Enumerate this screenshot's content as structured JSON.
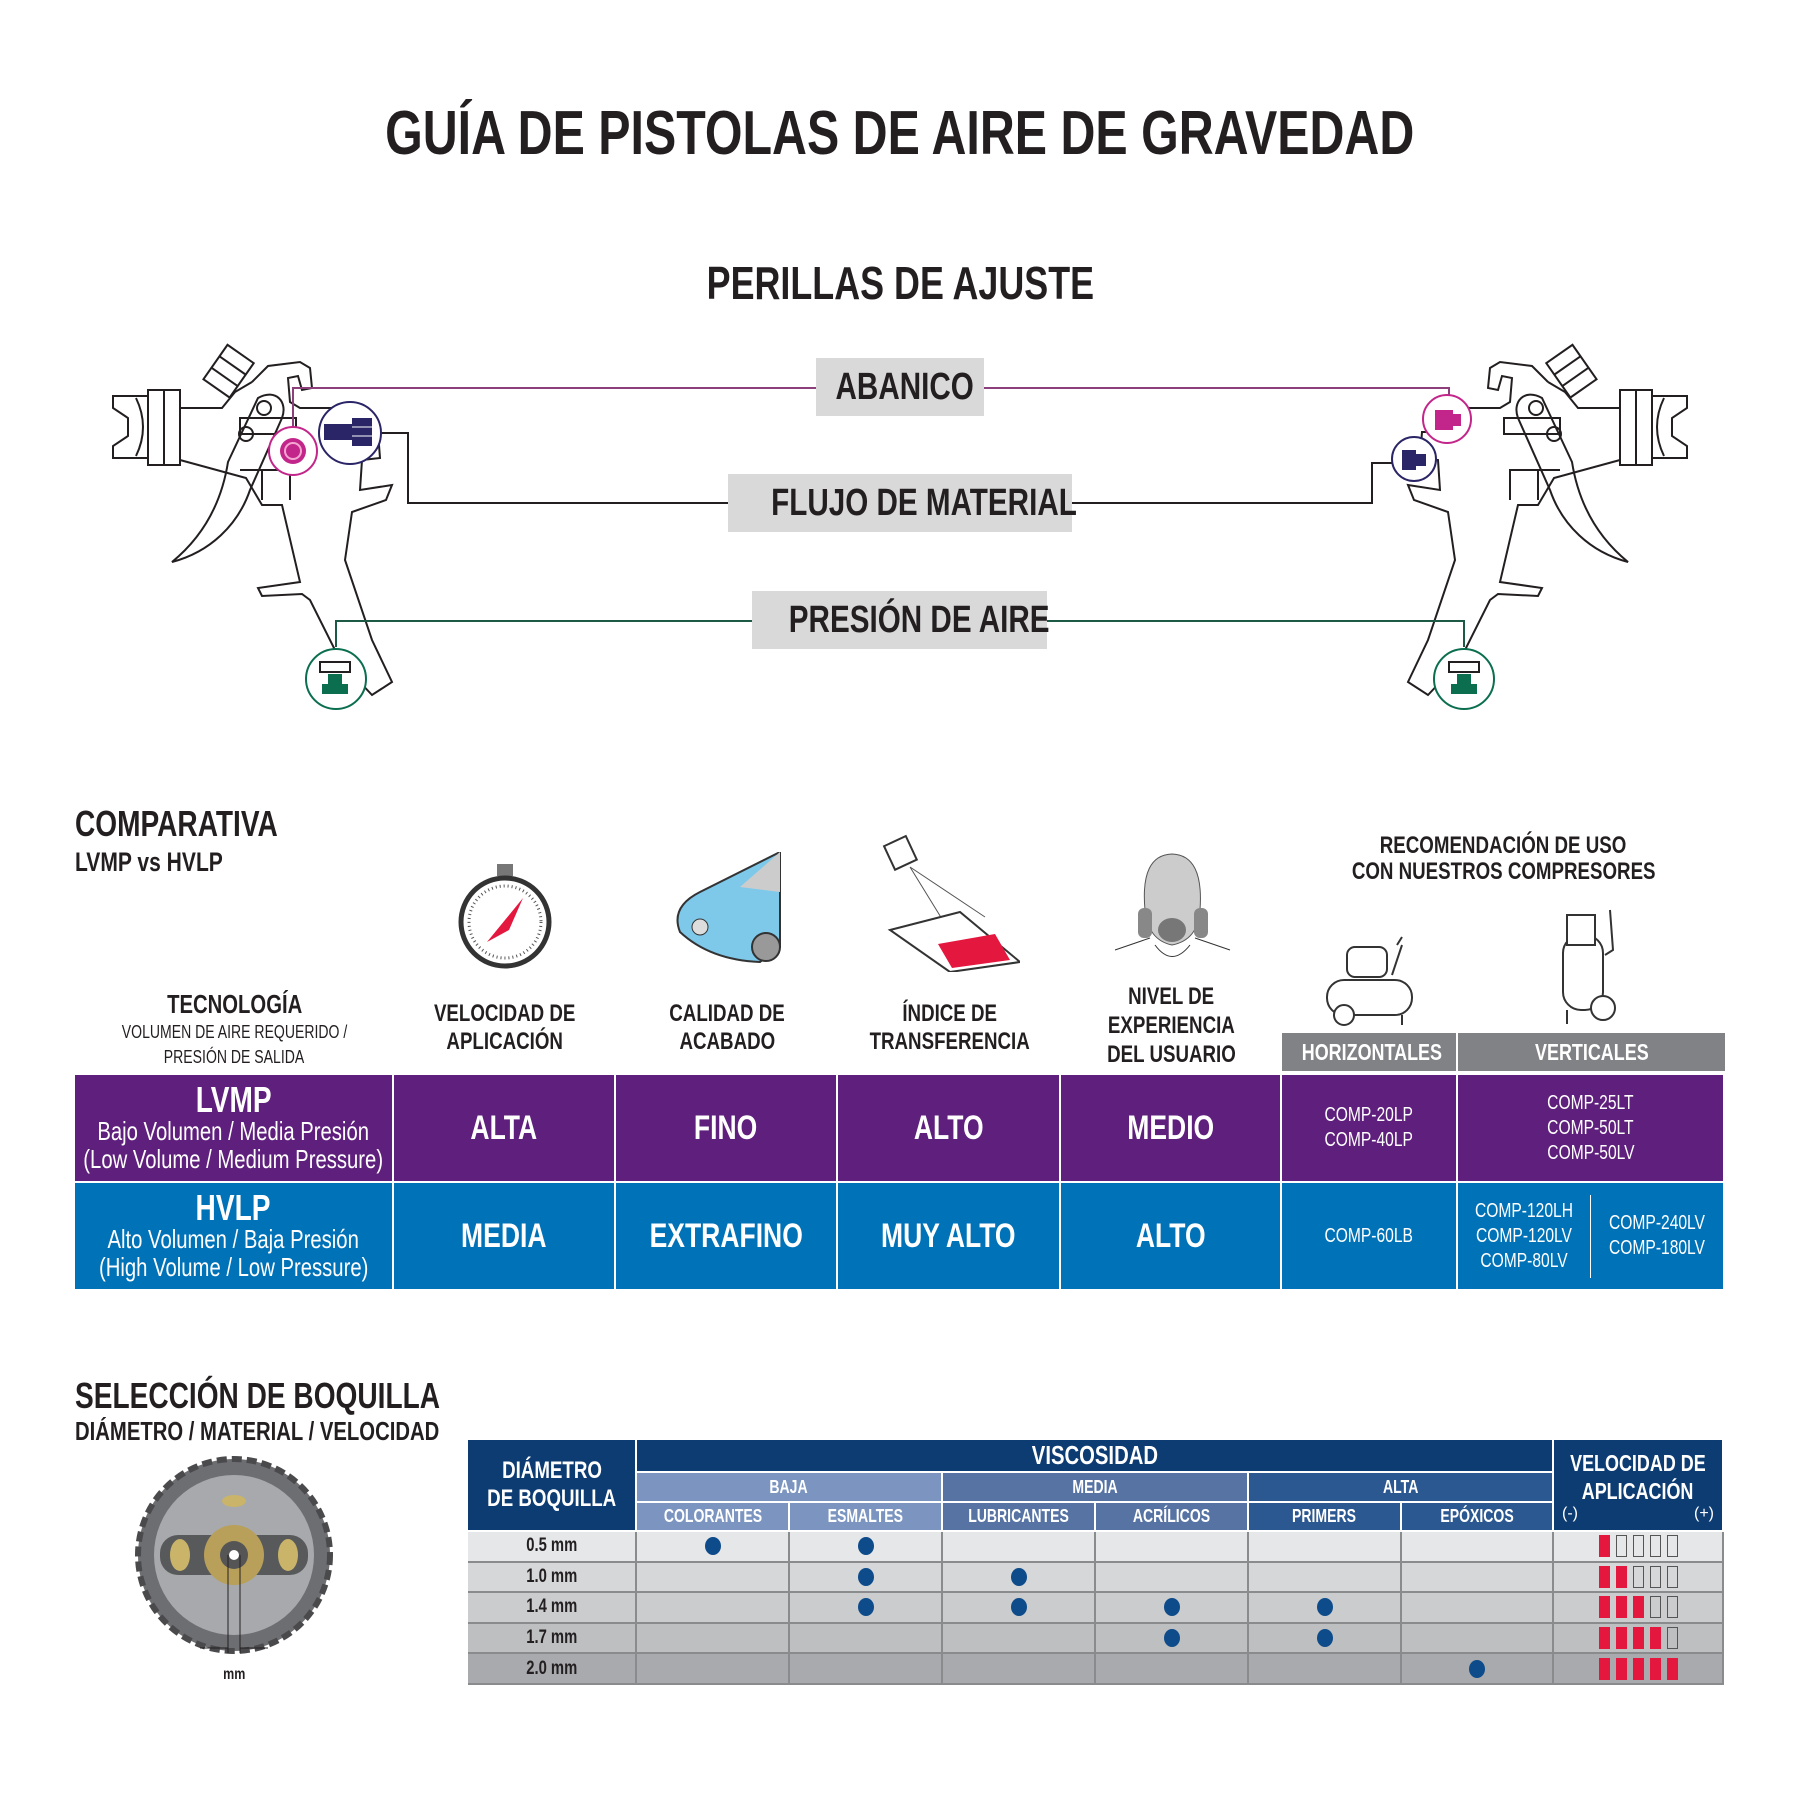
{
  "title": "GUÍA DE PISTOLAS DE AIRE DE GRAVEDAD",
  "adjust": {
    "title": "PERILLAS DE AJUSTE",
    "knobs": [
      {
        "label": "ABANICO",
        "color": "#c2268a"
      },
      {
        "label": "FLUJO DE MATERIAL",
        "color": "#2a2566"
      },
      {
        "label": "PRESIÓN DE AIRE",
        "color": "#0a6e4f"
      }
    ]
  },
  "comparison": {
    "title": "COMPARATIVA",
    "subtitle": "LVMP vs HVLP",
    "headers": {
      "technology": "TECNOLOGÍA",
      "technology_sub1": "VOLUMEN DE AIRE REQUERIDO /",
      "technology_sub2": "PRESIÓN DE SALIDA",
      "speed": [
        "VELOCIDAD DE",
        "APLICACIÓN"
      ],
      "finish": [
        "CALIDAD DE",
        "ACABADO"
      ],
      "transfer": [
        "ÍNDICE DE",
        "TRANSFERENCIA"
      ],
      "experience": [
        "NIVEL DE",
        "EXPERIENCIA",
        "DEL USUARIO"
      ],
      "recommendation": [
        "RECOMENDACIÓN DE USO",
        "CON NUESTROS COMPRESORES"
      ],
      "horizontal": "HORIZONTALES",
      "vertical": "VERTICALES"
    },
    "icons": [
      "stopwatch-icon",
      "car-icon",
      "spray-transfer-icon",
      "respirator-mask-icon",
      "horizontal-compressor-icon",
      "vertical-compressor-icon"
    ],
    "rows": [
      {
        "name": "LVMP",
        "desc": "Bajo Volumen / Media Presión",
        "desc_en": "(Low Volume / Medium Pressure)",
        "speed": "ALTA",
        "finish": "FINO",
        "transfer": "ALTO",
        "experience": "MEDIO",
        "horizontal": [
          "COMP-20LP",
          "COMP-40LP"
        ],
        "vertical": [
          "COMP-25LT",
          "COMP-50LT",
          "COMP-50LV"
        ],
        "color": "#5f1f7c"
      },
      {
        "name": "HVLP",
        "desc": "Alto Volumen / Baja Presión",
        "desc_en": "(High Volume / Low Pressure)",
        "speed": "MEDIA",
        "finish": "EXTRAFINO",
        "transfer": "MUY ALTO",
        "experience": "ALTO",
        "horizontal": [
          "COMP-60LB"
        ],
        "vertical": [
          "COMP-120LH",
          "COMP-120LV",
          "COMP-80LV"
        ],
        "vertical_b": [
          "COMP-240LV",
          "COMP-180LV"
        ],
        "color": "#0072b8"
      }
    ]
  },
  "nozzle": {
    "title": "SELECCIÓN DE BOQUILLA",
    "subtitle": "DIÁMETRO / MATERIAL / VELOCIDAD",
    "unit_label": "mm",
    "diameter_header": [
      "DIÁMETRO",
      "DE BOQUILLA"
    ],
    "viscosity_header": "VISCOSIDAD",
    "groups": [
      "BAJA",
      "MEDIA",
      "ALTA"
    ],
    "materials": [
      "COLORANTES",
      "ESMALTES",
      "LUBRICANTES",
      "ACRÍLICOS",
      "PRIMERS",
      "EPÓXICOS"
    ],
    "speed_header": [
      "VELOCIDAD DE",
      "APLICACIÓN"
    ],
    "speed_min": "(-)",
    "speed_max": "(+)",
    "speed_max_level": 5,
    "rows": [
      {
        "size": "0.5 mm",
        "materials": [
          true,
          true,
          false,
          false,
          false,
          false
        ],
        "speed": 1
      },
      {
        "size": "1.0 mm",
        "materials": [
          false,
          true,
          true,
          false,
          false,
          false
        ],
        "speed": 2
      },
      {
        "size": "1.4 mm",
        "materials": [
          false,
          true,
          true,
          true,
          true,
          false
        ],
        "speed": 3
      },
      {
        "size": "1.7 mm",
        "materials": [
          false,
          false,
          false,
          true,
          true,
          false
        ],
        "speed": 4
      },
      {
        "size": "2.0 mm",
        "materials": [
          false,
          false,
          false,
          false,
          false,
          true
        ],
        "speed": 5
      }
    ]
  }
}
